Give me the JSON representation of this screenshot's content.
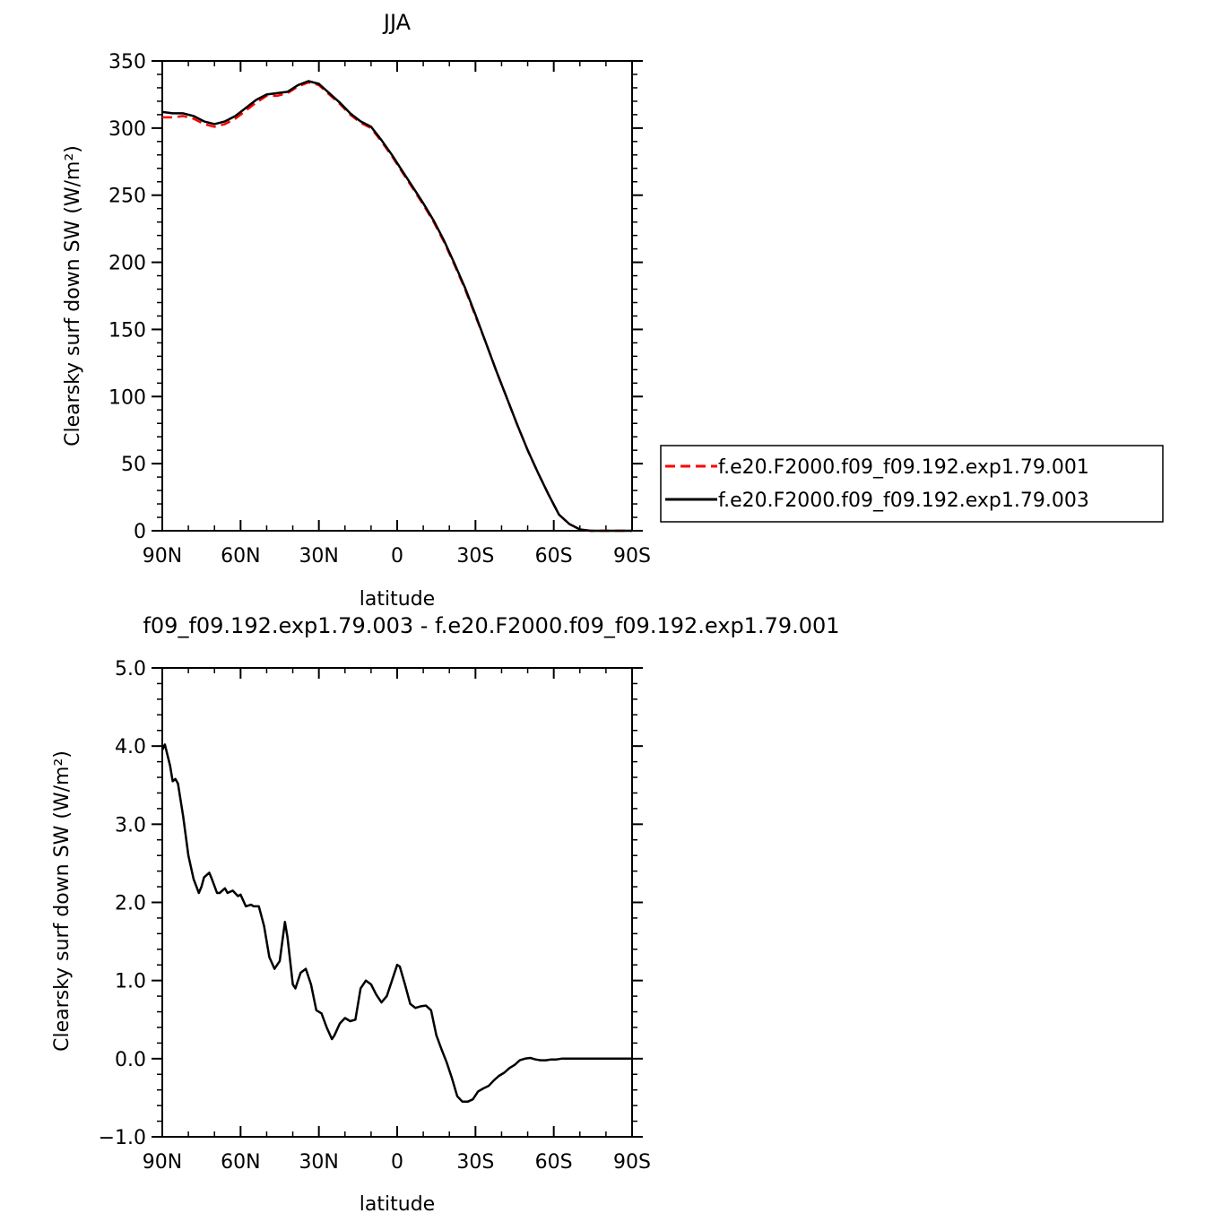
{
  "chart_data": [
    {
      "type": "line",
      "title": "JJA",
      "xlabel": "latitude",
      "ylabel": "Clearsky surf down SW (W/m²)",
      "xticks": [
        "90N",
        "60N",
        "30N",
        "0",
        "30S",
        "60S",
        "90S"
      ],
      "yticks": [
        "0",
        "50",
        "100",
        "150",
        "200",
        "250",
        "300",
        "350"
      ],
      "xlim": [
        90,
        -90
      ],
      "ylim": [
        0,
        350
      ],
      "legend_position": "right",
      "series": [
        {
          "name": "f.e20.F2000.f09_f09.192.exp1.79.001",
          "color": "#ff0000",
          "style": "dashed",
          "x": [
            90,
            86,
            82,
            78,
            74,
            70,
            66,
            62,
            58,
            54,
            50,
            46,
            42,
            38,
            34,
            30,
            26,
            22,
            18,
            14,
            10,
            6,
            2,
            -2,
            -6,
            -10,
            -14,
            -18,
            -22,
            -26,
            -30,
            -34,
            -38,
            -42,
            -46,
            -50,
            -54,
            -58,
            -62,
            -66,
            -70,
            -74,
            -78,
            -82,
            -86,
            -90
          ],
          "values": [
            308,
            308,
            309,
            307,
            303,
            301,
            303,
            307,
            313,
            319,
            324,
            324,
            326,
            331,
            334,
            332,
            325,
            318,
            310,
            304,
            300,
            290,
            279,
            267,
            255,
            243,
            230,
            215,
            198,
            180,
            160,
            140,
            119,
            99,
            79,
            60,
            43,
            27,
            12,
            5,
            1,
            0,
            0,
            0,
            0,
            0
          ]
        },
        {
          "name": "f.e20.F2000.f09_f09.192.exp1.79.003",
          "color": "#000000",
          "style": "solid",
          "x": [
            90,
            86,
            82,
            78,
            74,
            70,
            66,
            62,
            58,
            54,
            50,
            46,
            42,
            38,
            34,
            30,
            26,
            22,
            18,
            14,
            10,
            6,
            2,
            -2,
            -6,
            -10,
            -14,
            -18,
            -22,
            -26,
            -30,
            -34,
            -38,
            -42,
            -46,
            -50,
            -54,
            -58,
            -62,
            -66,
            -70,
            -74,
            -78,
            -82,
            -86,
            -90
          ],
          "values": [
            312,
            311,
            311,
            309,
            305,
            303,
            305,
            309,
            315,
            321,
            325,
            326,
            327,
            332,
            335,
            333,
            326,
            319,
            311,
            305,
            301,
            291,
            280,
            268,
            256,
            244,
            231,
            216,
            199,
            181,
            161,
            140,
            119,
            99,
            79,
            60,
            43,
            27,
            12,
            5,
            1,
            0,
            0,
            0,
            0,
            0
          ]
        }
      ]
    },
    {
      "type": "line",
      "title": "f09_f09.192.exp1.79.003 - f.e20.F2000.f09_f09.192.exp1.79.001",
      "xlabel": "latitude",
      "ylabel": "Clearsky surf down SW (W/m²)",
      "xticks": [
        "90N",
        "60N",
        "30N",
        "0",
        "30S",
        "60S",
        "90S"
      ],
      "yticks": [
        "-1.0",
        "0.0",
        "1.0",
        "2.0",
        "3.0",
        "4.0",
        "5.0"
      ],
      "xlim": [
        90,
        -90
      ],
      "ylim": [
        -1,
        5
      ],
      "series": [
        {
          "color": "#000000",
          "style": "solid",
          "x": [
            90,
            89,
            87,
            86,
            85,
            84,
            82,
            80,
            78,
            76,
            75,
            74,
            72,
            71,
            69,
            68,
            66,
            65,
            63,
            61,
            60,
            58,
            56,
            55,
            53,
            51,
            49,
            47,
            45,
            43,
            42,
            40,
            39,
            37,
            35,
            33,
            31,
            29,
            27,
            25,
            24,
            22,
            20,
            18,
            16,
            14,
            12,
            10,
            8,
            6,
            4,
            2,
            0,
            -1,
            -3,
            -5,
            -7,
            -9,
            -11,
            -13,
            -15,
            -17,
            -19,
            -21,
            -23,
            -25,
            -27,
            -29,
            -31,
            -33,
            -35,
            -37,
            -39,
            -41,
            -43,
            -45,
            -47,
            -49,
            -51,
            -53,
            -55,
            -57,
            -59,
            -61,
            -63,
            -65,
            -68,
            -72,
            -76,
            -80,
            -84,
            -90
          ],
          "values": [
            3.95,
            4.02,
            3.75,
            3.55,
            3.58,
            3.52,
            3.1,
            2.6,
            2.3,
            2.12,
            2.2,
            2.32,
            2.38,
            2.3,
            2.12,
            2.12,
            2.18,
            2.12,
            2.15,
            2.08,
            2.1,
            1.95,
            1.97,
            1.95,
            1.95,
            1.7,
            1.3,
            1.15,
            1.25,
            1.75,
            1.55,
            0.95,
            0.9,
            1.1,
            1.15,
            0.95,
            0.62,
            0.58,
            0.4,
            0.25,
            0.3,
            0.45,
            0.52,
            0.48,
            0.5,
            0.9,
            1.0,
            0.95,
            0.82,
            0.72,
            0.8,
            1.0,
            1.2,
            1.18,
            0.95,
            0.7,
            0.65,
            0.67,
            0.68,
            0.62,
            0.3,
            0.12,
            -0.05,
            -0.25,
            -0.48,
            -0.55,
            -0.55,
            -0.52,
            -0.42,
            -0.38,
            -0.35,
            -0.28,
            -0.22,
            -0.18,
            -0.12,
            -0.08,
            -0.02,
            0.0,
            0.01,
            -0.01,
            -0.02,
            -0.02,
            -0.01,
            -0.01,
            0.0,
            0.0,
            0.0,
            0.0,
            0.0,
            0.0,
            0.0,
            0.0
          ]
        }
      ]
    }
  ]
}
